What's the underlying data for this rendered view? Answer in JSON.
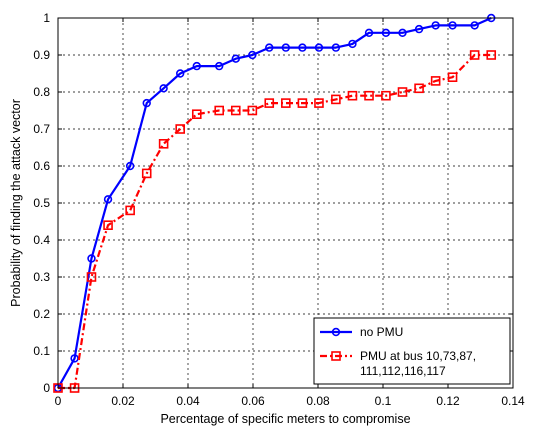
{
  "chart_data": {
    "type": "line",
    "title": "",
    "xlabel": "Percentage of specific meters to compromise",
    "ylabel": "Probability of finding the attack vector",
    "xlim": [
      0,
      0.14
    ],
    "ylim": [
      0,
      1
    ],
    "xticks": [
      0,
      0.02,
      0.04,
      0.06,
      0.08,
      0.1,
      0.12,
      0.14
    ],
    "xtick_labels": [
      "0",
      "0.02",
      "0.04",
      "0.06",
      "0.08",
      "0.1",
      "0.12",
      "0.14"
    ],
    "yticks": [
      0,
      0.1,
      0.2,
      0.3,
      0.4,
      0.5,
      0.6,
      0.7,
      0.8,
      0.9,
      1
    ],
    "ytick_labels": [
      "0",
      "0.1",
      "0.2",
      "0.3",
      "0.4",
      "0.5",
      "0.6",
      "0.7",
      "0.8",
      "0.9",
      "1"
    ],
    "grid": true,
    "legend_position": "bottom-right",
    "series": [
      {
        "name": "no PMU",
        "color": "#0000ff",
        "line_style": "solid",
        "marker": "circle",
        "x": [
          0,
          0.0051,
          0.0103,
          0.0154,
          0.0222,
          0.0273,
          0.0325,
          0.0376,
          0.0427,
          0.0496,
          0.0547,
          0.0598,
          0.065,
          0.0701,
          0.0752,
          0.0803,
          0.0855,
          0.0906,
          0.0957,
          0.1009,
          0.106,
          0.1111,
          0.1162,
          0.1214,
          0.1282,
          0.1333
        ],
        "y": [
          0,
          0.08,
          0.35,
          0.51,
          0.6,
          0.77,
          0.81,
          0.85,
          0.87,
          0.87,
          0.89,
          0.9,
          0.92,
          0.92,
          0.92,
          0.92,
          0.92,
          0.93,
          0.96,
          0.96,
          0.96,
          0.97,
          0.98,
          0.98,
          0.98,
          1.0
        ]
      },
      {
        "name_lines": [
          "PMU at bus 10,73,87,",
          "111,112,116,117"
        ],
        "color": "#ff0000",
        "line_style": "dash-dot",
        "marker": "square",
        "x": [
          0,
          0.0051,
          0.0103,
          0.0154,
          0.0222,
          0.0273,
          0.0325,
          0.0376,
          0.0427,
          0.0496,
          0.0547,
          0.0598,
          0.065,
          0.0701,
          0.0752,
          0.0803,
          0.0855,
          0.0906,
          0.0957,
          0.1009,
          0.106,
          0.1111,
          0.1162,
          0.1214,
          0.1282,
          0.1333
        ],
        "y": [
          0,
          0,
          0.3,
          0.44,
          0.48,
          0.58,
          0.66,
          0.7,
          0.74,
          0.75,
          0.75,
          0.75,
          0.77,
          0.77,
          0.77,
          0.77,
          0.78,
          0.79,
          0.79,
          0.79,
          0.8,
          0.81,
          0.83,
          0.84,
          0.9,
          0.9
        ]
      }
    ]
  }
}
